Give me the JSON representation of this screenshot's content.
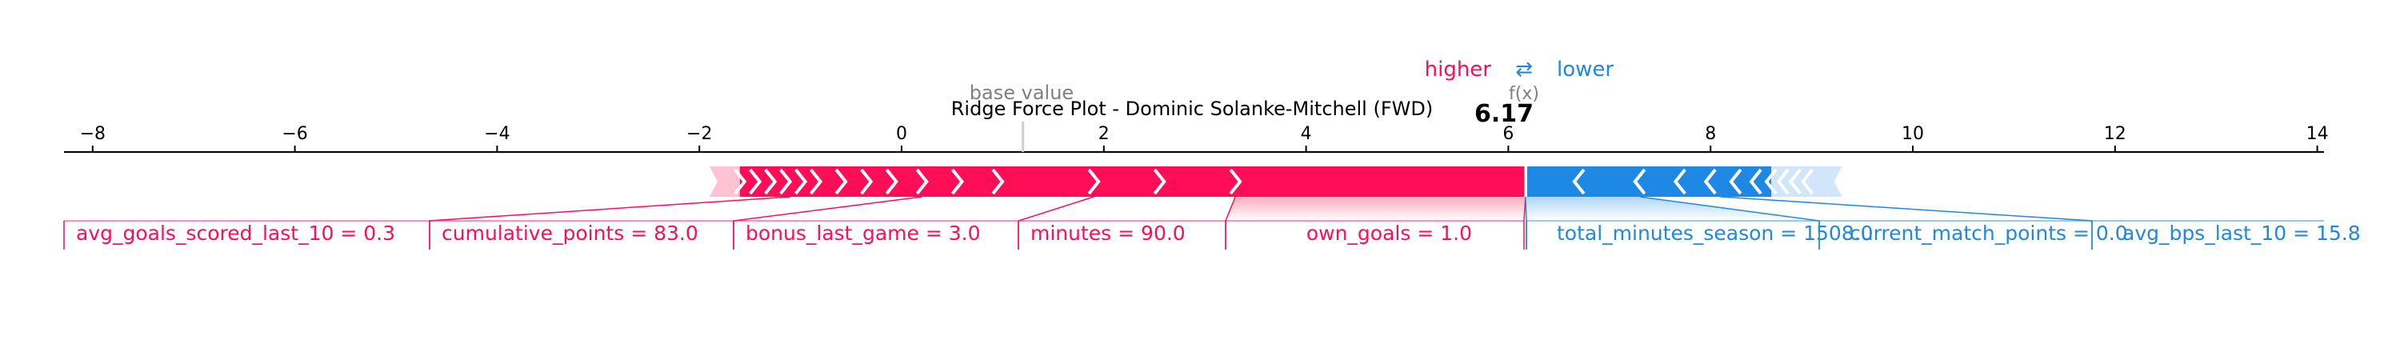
{
  "chart_data": {
    "type": "force",
    "title": "Ridge Force Plot - Dominic Solanke-Mitchell (FWD)",
    "xlim": [
      -8.5,
      14.0
    ],
    "ticks": [
      -8,
      -6,
      -4,
      -2,
      0,
      2,
      4,
      6,
      8,
      10,
      12,
      14
    ],
    "base_value": 1.2,
    "base_value_label": "base value",
    "fx_label": "f(x)",
    "fx_value": "6.17",
    "legend": {
      "higher": "higher",
      "arrow": "⇄",
      "lower": "lower"
    },
    "colors": {
      "positive": "#ff0d57",
      "negative": "#1e88e5",
      "positive_fade": "#ffc3d5",
      "negative_fade": "#d1e6fa",
      "axis": "#000000",
      "base_label": "#808080"
    },
    "features": [
      {
        "label": "avg_goals_scored_last_10 = 0.3",
        "from": -1.6,
        "to": -1.1,
        "side": "positive"
      },
      {
        "label": "cumulative_points = 83.0",
        "from": -1.1,
        "to": 0.2,
        "side": "positive"
      },
      {
        "label": "bonus_last_game = 3.0",
        "from": 0.2,
        "to": 1.9,
        "side": "positive"
      },
      {
        "label": "minutes = 90.0",
        "from": 1.9,
        "to": 3.3,
        "side": "positive"
      },
      {
        "label": "own_goals = 1.0",
        "from": 3.3,
        "to": 6.17,
        "side": "positive"
      },
      {
        "label": "total_minutes_season = 1508.0",
        "from": 6.17,
        "to": 7.3,
        "side": "negative"
      },
      {
        "label": "current_match_points = 0.0",
        "from": 7.3,
        "to": 8.1,
        "side": "negative"
      },
      {
        "label": "avg_bps_last_10 = 15.8",
        "from": 8.1,
        "to": 8.6,
        "side": "negative"
      }
    ],
    "small_positive_from": -1.9,
    "small_negative_to": 9.3
  }
}
